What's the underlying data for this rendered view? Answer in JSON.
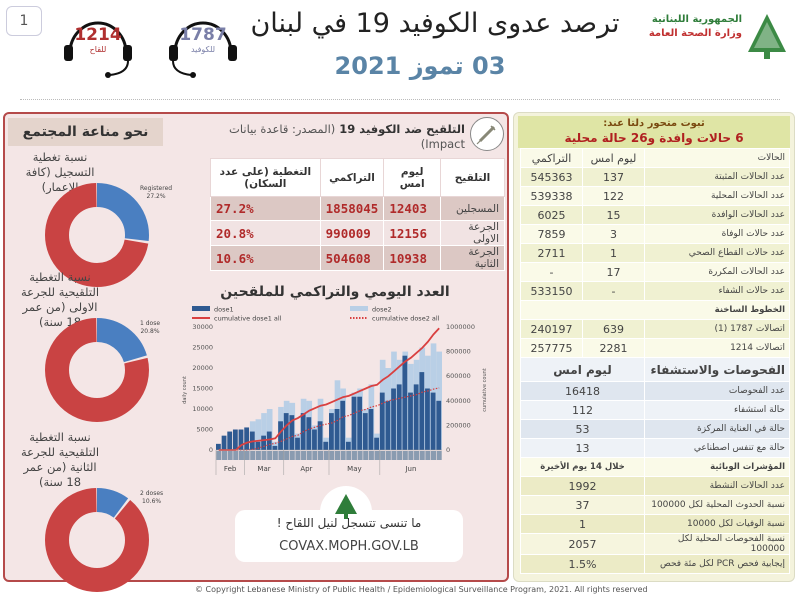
{
  "page_badge": "1",
  "hotlines": [
    {
      "number": "1214",
      "label": "للقاح",
      "color": "#b03030"
    },
    {
      "number": "1787",
      "label": "للكوفيد",
      "color": "#7a7fa8"
    }
  ],
  "header": {
    "title": "ترصد عدوى الكوفيد 19 في لبنان",
    "date": "03 تموز 2021",
    "logo_line1": "الجمهورية اللبنانية",
    "logo_line2": "وزارة الصحة العامة"
  },
  "immunity": {
    "title": "نحو مناعة المجتمع",
    "donuts": [
      {
        "caption": "نسبة تغطية التسجيل (كافة الاعمار)",
        "label": "Registered",
        "value_text": "27.2%",
        "value": 27.2
      },
      {
        "caption": "نسبة التغطية التلقيحية للجرعة الاولى (من عمر 18 سنة)",
        "label": "1 dose",
        "value_text": "20.8%",
        "value": 20.8
      },
      {
        "caption": "نسبة التغطية التلقيحية للجرعة الثانية (من عمر 18 سنة)",
        "label": "2 doses",
        "value_text": "10.6%",
        "value": 10.6
      }
    ]
  },
  "vaccination": {
    "title": "التلقيح ضد الكوفيد 19",
    "source": "(المصدر: قاعدة بيانات Impact)",
    "headers": [
      "التلقيح",
      "ليوم امس",
      "التراكمي",
      "التغطية (على عدد السكان)"
    ],
    "rows": [
      [
        "المسجلين",
        "12403",
        "1858045",
        "27.2%"
      ],
      [
        "الجرعة الاولى",
        "12156",
        "990009",
        "20.8%"
      ],
      [
        "الجرعة الثانية",
        "10938",
        "504608",
        "10.6%"
      ]
    ]
  },
  "chart_data": {
    "type": "bar",
    "title": "العدد اليومي والتراكمي للملقحين",
    "legend": [
      "dose1",
      "dose2",
      "cumulative dose1 all",
      "cumulative dose2 all"
    ],
    "ylabel": "daily count",
    "y2label": "cumulative count",
    "ylim": [
      0,
      30000
    ],
    "y2lim": [
      0,
      1000000
    ],
    "yticks": [
      "0",
      "5000",
      "10000",
      "15000",
      "20000",
      "25000",
      "30000"
    ],
    "y2ticks": [
      "0",
      "200000",
      "400000",
      "600000",
      "800000",
      "1000000"
    ],
    "months": [
      "Feb",
      "Mar",
      "Apr",
      "May",
      "Jun"
    ],
    "month_points": [
      [
        0,
        5
      ],
      [
        5,
        12
      ],
      [
        12,
        20
      ],
      [
        20,
        29
      ],
      [
        29,
        40
      ]
    ],
    "dose1": [
      1500,
      3500,
      4500,
      5000,
      5000,
      5500,
      4500,
      2000,
      3500,
      4500,
      1000,
      7000,
      9000,
      8500,
      3000,
      9000,
      8000,
      5000,
      7000,
      2000,
      9000,
      10000,
      12000,
      2000,
      13000,
      13000,
      9000,
      10000,
      3000,
      14000,
      12000,
      15000,
      16000,
      23000,
      14000,
      16000,
      19000,
      15000,
      14000,
      12000
    ],
    "dose2": [
      0,
      0,
      0,
      0,
      0,
      500,
      7000,
      7500,
      9000,
      10000,
      2000,
      10500,
      12000,
      11500,
      4000,
      12500,
      12000,
      6000,
      12500,
      3000,
      10000,
      17000,
      15000,
      3000,
      14000,
      15000,
      10000,
      16000,
      4000,
      22000,
      20000,
      24000,
      22000,
      24000,
      21000,
      22000,
      25000,
      23000,
      26000,
      24000
    ],
    "cum_dose1": [
      0,
      0,
      0,
      0,
      40000,
      60000,
      70000,
      75000,
      80000,
      85000,
      95000,
      150000,
      200000,
      240000,
      260000,
      290000,
      320000,
      340000,
      360000,
      370000,
      390000,
      410000,
      430000,
      440000,
      460000,
      480000,
      500000,
      520000,
      530000,
      570000,
      600000,
      640000,
      680000,
      720000,
      750000,
      790000,
      830000,
      880000,
      940000,
      990000
    ],
    "cum_dose2": [
      0,
      0,
      0,
      0,
      0,
      0,
      5000,
      15000,
      30000,
      45000,
      55000,
      70000,
      90000,
      110000,
      120000,
      150000,
      170000,
      185000,
      200000,
      210000,
      220000,
      240000,
      270000,
      280000,
      300000,
      320000,
      330000,
      350000,
      360000,
      380000,
      400000,
      410000,
      420000,
      430000,
      440000,
      450000,
      470000,
      480000,
      495000,
      504608
    ]
  },
  "covax": {
    "message": "ما تنسى تتسجل لنيل اللقاح !",
    "url": "COVAX.MOPH.GOV.LB"
  },
  "cases": {
    "banner_line1": "ثبوت متحور دلتا عند:",
    "banner_line2": "6 حالات وافدة و26 حالة محلية",
    "headers": [
      "الحالات",
      "ليوم امس",
      "التراكمي"
    ],
    "rows": [
      [
        "عدد الحالات المثبتة",
        "137",
        "545363"
      ],
      [
        "عدد الحالات المحلية",
        "122",
        "539338"
      ],
      [
        "عدد الحالات الوافدة",
        "15",
        "6025"
      ],
      [
        "عدد حالات الوفاة",
        "3",
        "7859"
      ],
      [
        "عدد حالات القطاع الصحي",
        "1",
        "2711"
      ],
      [
        "عدد الحالات المكررة",
        "17",
        "-"
      ],
      [
        "عدد حالات الشفاء",
        "-",
        "533150"
      ]
    ],
    "hotlines_header": "الخطوط الساخنة",
    "hotline_rows": [
      [
        "اتصالات 1787 (1)",
        "639",
        "240197"
      ],
      [
        "اتصالات 1214",
        "2281",
        "257775"
      ]
    ]
  },
  "tests": {
    "header": "الفحوصات والاستشفاء",
    "col": "ليوم امس",
    "rows": [
      [
        "عدد الفحوصات",
        "16418"
      ],
      [
        "حالة استشفاء",
        "112"
      ],
      [
        "حالة في العناية المركزة",
        "53"
      ],
      [
        "حالة مع تنفس اصطناعي",
        "13"
      ]
    ]
  },
  "indicators": {
    "header": "المؤشرات الوبائية",
    "col": "خلال 14 يوم الأخيرة",
    "rows": [
      [
        "عدد الحالات النشطة",
        "1992"
      ],
      [
        "نسبة الحدوث المحلية لكل 100000",
        "37"
      ],
      [
        "نسبة الوفيات لكل 10000",
        "1"
      ],
      [
        "نسبة الفحوصات المحلية لكل 100000",
        "2057"
      ],
      [
        "إيجابية فحص PCR لكل مئة فحص",
        "1.5%"
      ]
    ]
  },
  "footer": "© Copyright Lebanese Ministry of Public Health / Epidemiological Surveillance Program, 2021. All rights reserved",
  "colors": {
    "blue": "#4a7fc1",
    "red": "#c94343",
    "dose1": "#2f5a91",
    "dose2": "#b9cfe6",
    "cum1": "#d94040"
  }
}
